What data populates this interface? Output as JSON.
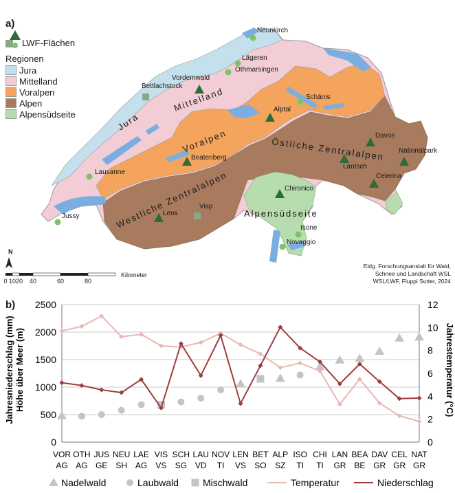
{
  "panel_a": {
    "letter": "a)",
    "legend": {
      "lwf_label": "LWF-Flächen",
      "regions_title": "Regionen",
      "regions": [
        {
          "name": "Jura",
          "color": "#c4e0ec"
        },
        {
          "name": "Mittelland",
          "color": "#f2cdd6"
        },
        {
          "name": "Voralpen",
          "color": "#f4a45c"
        },
        {
          "name": "Alpen",
          "color": "#a87a5e"
        },
        {
          "name": "Alpensüdseite",
          "color": "#b7dcae"
        }
      ]
    },
    "region_labels": [
      "Jura",
      "Mittelland",
      "Voralpen",
      "Östliche Zentralalpen",
      "Westliche Zentralalpen",
      "Alpensüdseite"
    ],
    "sites": [
      {
        "name": "Neunkirch",
        "symbol": "circle"
      },
      {
        "name": "Lägeren",
        "symbol": "circle"
      },
      {
        "name": "Othmarsingen",
        "symbol": "circle"
      },
      {
        "name": "Vordemwald",
        "symbol": "triangle"
      },
      {
        "name": "Bettlachstock",
        "symbol": "square"
      },
      {
        "name": "Schänis",
        "symbol": "circle"
      },
      {
        "name": "Alptal",
        "symbol": "triangle"
      },
      {
        "name": "Davos",
        "symbol": "triangle"
      },
      {
        "name": "Nationalpark",
        "symbol": "triangle"
      },
      {
        "name": "Lantsch",
        "symbol": "triangle"
      },
      {
        "name": "Celerina",
        "symbol": "triangle"
      },
      {
        "name": "Beatenberg",
        "symbol": "triangle"
      },
      {
        "name": "Lausanne",
        "symbol": "circle"
      },
      {
        "name": "Chironico",
        "symbol": "triangle"
      },
      {
        "name": "Jussy",
        "symbol": "circle"
      },
      {
        "name": "Lens",
        "symbol": "triangle"
      },
      {
        "name": "Visp",
        "symbol": "square"
      },
      {
        "name": "Isone",
        "symbol": "circle"
      },
      {
        "name": "Novaggio",
        "symbol": "circle"
      }
    ],
    "scale": {
      "ticks": [
        "0",
        "10",
        "20",
        "40",
        "60",
        "80"
      ],
      "unit": "Kilometer",
      "north": "N"
    },
    "credit": [
      "Eidg. Forschungsanstalt für Wald,",
      "Schnee und Landschaft WSL",
      "WSL/LWF, Fluppi Sutter, 2024"
    ]
  },
  "chart_data": {
    "type": "line",
    "panel_letter": "b)",
    "categories": [
      [
        "VOR",
        "AG"
      ],
      [
        "OTH",
        "AG"
      ],
      [
        "JUS",
        "GE"
      ],
      [
        "NEU",
        "SH"
      ],
      [
        "LAE",
        "AG"
      ],
      [
        "VIS",
        "VS"
      ],
      [
        "SCH",
        "SG"
      ],
      [
        "LAU",
        "VD"
      ],
      [
        "NOV",
        "TI"
      ],
      [
        "LEN",
        "VS"
      ],
      [
        "BET",
        "SO"
      ],
      [
        "ALP",
        "SZ"
      ],
      [
        "ISO",
        "TI"
      ],
      [
        "CHI",
        "TI"
      ],
      [
        "LAN",
        "GR"
      ],
      [
        "BEA",
        "BE"
      ],
      [
        "DAV",
        "GR"
      ],
      [
        "CEL",
        "GR"
      ],
      [
        "NAT",
        "GR"
      ]
    ],
    "ylabel_left": [
      "Jahresniederschlag (mm)",
      "Höhe über Meer (m)"
    ],
    "ylabel_right": "Jahrestemperatur (°C)",
    "ylim_left": [
      0,
      2500
    ],
    "yticks_left": [
      "0",
      "500",
      "1000",
      "1500",
      "2000",
      "2500"
    ],
    "ylim_right": [
      0,
      12
    ],
    "yticks_right": [
      "0",
      "2",
      "4",
      "6",
      "8",
      "10",
      "12"
    ],
    "grid": true,
    "legend_position": "bottom",
    "elevation": {
      "values": [
        480,
        470,
        500,
        580,
        680,
        680,
        730,
        800,
        950,
        1060,
        1150,
        1160,
        1220,
        1370,
        1490,
        1520,
        1650,
        1890,
        1910
      ],
      "types": [
        "Nadelwald",
        "Laubwald",
        "Laubwald",
        "Laubwald",
        "Laubwald",
        "Mischwald",
        "Laubwald",
        "Laubwald",
        "Laubwald",
        "Nadelwald",
        "Mischwald",
        "Nadelwald",
        "Laubwald",
        "Nadelwald",
        "Nadelwald",
        "Nadelwald",
        "Nadelwald",
        "Nadelwald",
        "Nadelwald"
      ]
    },
    "series": [
      {
        "name": "Temperatur",
        "axis": "right",
        "color": "#e9b8b4",
        "values": [
          9.7,
          10.1,
          11.0,
          9.2,
          9.4,
          8.4,
          8.3,
          8.7,
          9.5,
          8.5,
          7.7,
          6.5,
          6.9,
          6.2,
          3.3,
          5.5,
          3.4,
          2.3,
          1.8
        ]
      },
      {
        "name": "Niederschlag",
        "axis": "left",
        "color": "#9e3c3c",
        "values": [
          1080,
          1030,
          950,
          900,
          1140,
          620,
          1790,
          1210,
          1940,
          700,
          1390,
          2090,
          1710,
          1460,
          1060,
          1420,
          1100,
          790,
          800
        ]
      }
    ],
    "legend": [
      {
        "name": "Nadelwald",
        "marker": "triangle"
      },
      {
        "name": "Laubwald",
        "marker": "circle"
      },
      {
        "name": "Mischwald",
        "marker": "square"
      },
      {
        "name": "Temperatur",
        "marker": "line-light"
      },
      {
        "name": "Niederschlag",
        "marker": "line-dark"
      }
    ],
    "colors": {
      "marker_gray": "#c4c4c4",
      "grid": "#c9c9c9"
    }
  }
}
